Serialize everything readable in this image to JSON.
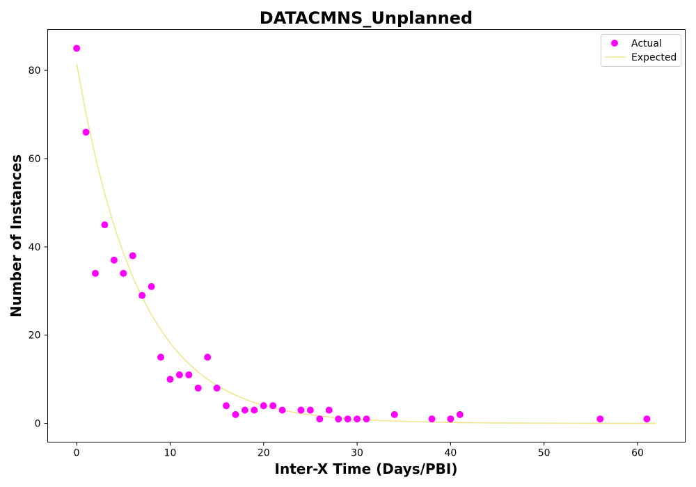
{
  "chart_data": {
    "type": "scatter",
    "title": "DATACMNS_Unplanned",
    "xlabel": "Inter-X Time (Days/PBI)",
    "ylabel": "Number of Instances",
    "xlim": [
      -3.1,
      65.1
    ],
    "ylim": [
      -4.25,
      89.25
    ],
    "x_ticks": [
      0,
      10,
      20,
      30,
      40,
      50,
      60
    ],
    "y_ticks": [
      0,
      20,
      40,
      60,
      80
    ],
    "grid": false,
    "legend_position": "top-right",
    "series": [
      {
        "name": "Actual",
        "kind": "scatter",
        "color": "#ff00ff",
        "points": [
          {
            "x": 0,
            "y": 85
          },
          {
            "x": 1,
            "y": 66
          },
          {
            "x": 2,
            "y": 34
          },
          {
            "x": 3,
            "y": 45
          },
          {
            "x": 4,
            "y": 37
          },
          {
            "x": 5,
            "y": 34
          },
          {
            "x": 6,
            "y": 38
          },
          {
            "x": 7,
            "y": 29
          },
          {
            "x": 8,
            "y": 31
          },
          {
            "x": 9,
            "y": 15
          },
          {
            "x": 10,
            "y": 10
          },
          {
            "x": 11,
            "y": 11
          },
          {
            "x": 12,
            "y": 11
          },
          {
            "x": 13,
            "y": 8
          },
          {
            "x": 14,
            "y": 15
          },
          {
            "x": 15,
            "y": 8
          },
          {
            "x": 16,
            "y": 4
          },
          {
            "x": 17,
            "y": 2
          },
          {
            "x": 18,
            "y": 3
          },
          {
            "x": 19,
            "y": 3
          },
          {
            "x": 20,
            "y": 4
          },
          {
            "x": 21,
            "y": 4
          },
          {
            "x": 22,
            "y": 3
          },
          {
            "x": 24,
            "y": 3
          },
          {
            "x": 25,
            "y": 3
          },
          {
            "x": 26,
            "y": 1
          },
          {
            "x": 27,
            "y": 3
          },
          {
            "x": 28,
            "y": 1
          },
          {
            "x": 29,
            "y": 1
          },
          {
            "x": 30,
            "y": 1
          },
          {
            "x": 31,
            "y": 1
          },
          {
            "x": 34,
            "y": 2
          },
          {
            "x": 38,
            "y": 1
          },
          {
            "x": 40,
            "y": 1
          },
          {
            "x": 41,
            "y": 2
          },
          {
            "x": 56,
            "y": 1
          },
          {
            "x": 61,
            "y": 1
          }
        ]
      },
      {
        "name": "Expected",
        "kind": "line",
        "color": "#f0e68c",
        "points": [
          {
            "x": 0,
            "y": 81.5
          },
          {
            "x": 1,
            "y": 70.2
          },
          {
            "x": 2,
            "y": 60.4
          },
          {
            "x": 3,
            "y": 52.0
          },
          {
            "x": 4,
            "y": 44.8
          },
          {
            "x": 5,
            "y": 38.6
          },
          {
            "x": 6,
            "y": 33.2
          },
          {
            "x": 7,
            "y": 28.6
          },
          {
            "x": 8,
            "y": 24.6
          },
          {
            "x": 9,
            "y": 21.2
          },
          {
            "x": 10,
            "y": 18.2
          },
          {
            "x": 11,
            "y": 15.7
          },
          {
            "x": 12,
            "y": 13.5
          },
          {
            "x": 13,
            "y": 11.6
          },
          {
            "x": 14,
            "y": 10.0
          },
          {
            "x": 15,
            "y": 8.6
          },
          {
            "x": 16,
            "y": 7.4
          },
          {
            "x": 17,
            "y": 6.4
          },
          {
            "x": 18,
            "y": 5.5
          },
          {
            "x": 19,
            "y": 4.7
          },
          {
            "x": 20,
            "y": 4.1
          },
          {
            "x": 22,
            "y": 3.0
          },
          {
            "x": 24,
            "y": 2.2
          },
          {
            "x": 26,
            "y": 1.7
          },
          {
            "x": 28,
            "y": 1.2
          },
          {
            "x": 30,
            "y": 0.9
          },
          {
            "x": 33,
            "y": 0.6
          },
          {
            "x": 36,
            "y": 0.4
          },
          {
            "x": 40,
            "y": 0.2
          },
          {
            "x": 45,
            "y": 0.1
          },
          {
            "x": 50,
            "y": 0.05
          },
          {
            "x": 55,
            "y": 0.02
          },
          {
            "x": 62,
            "y": 0.0
          }
        ]
      }
    ]
  }
}
